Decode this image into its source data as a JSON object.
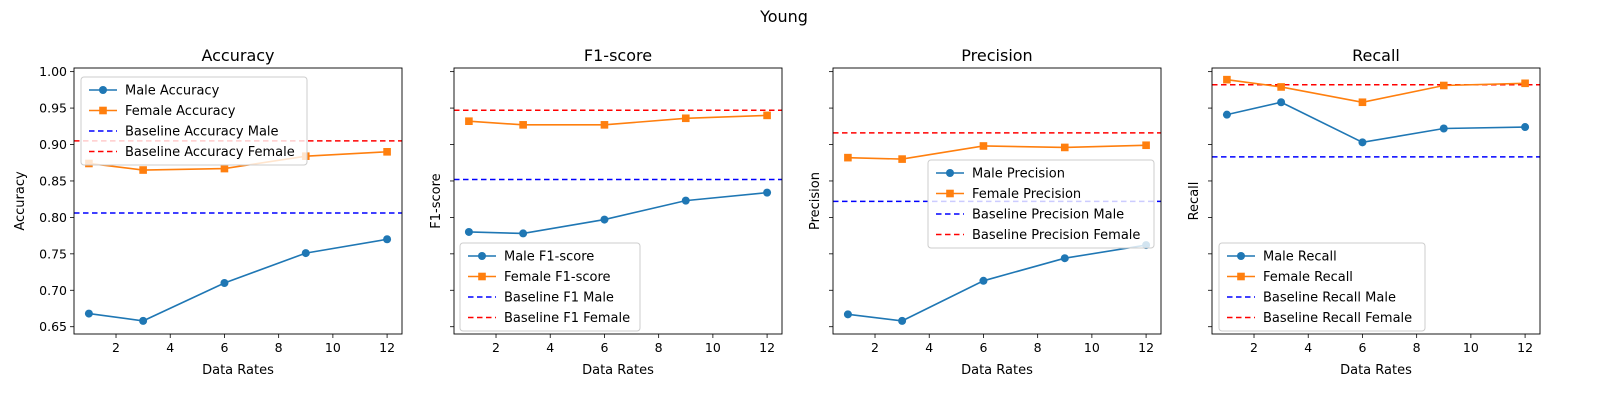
{
  "suptitle": "Young",
  "chart_data": [
    {
      "type": "line",
      "title": "Accuracy",
      "xlabel": "Data Rates",
      "ylabel": "Accuracy",
      "x": [
        1,
        3,
        6,
        9,
        12
      ],
      "xticks": [
        2,
        4,
        6,
        8,
        10,
        12
      ],
      "yticks": [
        "0.65",
        "0.70",
        "0.75",
        "0.80",
        "0.85",
        "0.90",
        "0.95",
        "1.00"
      ],
      "ylim": [
        0.64,
        1.005
      ],
      "grid": false,
      "legend_position": "upper-left",
      "series": [
        {
          "name": "Male Accuracy",
          "values": [
            0.668,
            0.658,
            0.71,
            0.751,
            0.77
          ],
          "color": "#1f77b4",
          "marker": "circle"
        },
        {
          "name": "Female Accuracy",
          "values": [
            0.874,
            0.865,
            0.867,
            0.884,
            0.89
          ],
          "color": "#ff7f0e",
          "marker": "square"
        }
      ],
      "baselines": [
        {
          "name": "Baseline Accuracy Male",
          "value": 0.806,
          "color": "#0000ff"
        },
        {
          "name": "Baseline Accuracy Female",
          "value": 0.905,
          "color": "#ff0000"
        }
      ]
    },
    {
      "type": "line",
      "title": "F1-score",
      "xlabel": "Data Rates",
      "ylabel": "F1-score",
      "x": [
        1,
        3,
        6,
        9,
        12
      ],
      "xticks": [
        2,
        4,
        6,
        8,
        10,
        12
      ],
      "yticks": [],
      "ylim": [
        0.64,
        1.005
      ],
      "grid": false,
      "legend_position": "lower-left",
      "series": [
        {
          "name": "Male F1-score",
          "values": [
            0.78,
            0.778,
            0.797,
            0.823,
            0.834
          ],
          "color": "#1f77b4",
          "marker": "circle"
        },
        {
          "name": "Female F1-score",
          "values": [
            0.932,
            0.927,
            0.927,
            0.936,
            0.94
          ],
          "color": "#ff7f0e",
          "marker": "square"
        }
      ],
      "baselines": [
        {
          "name": "Baseline F1 Male",
          "value": 0.852,
          "color": "#0000ff"
        },
        {
          "name": "Baseline F1 Female",
          "value": 0.947,
          "color": "#ff0000"
        }
      ]
    },
    {
      "type": "line",
      "title": "Precision",
      "xlabel": "Data Rates",
      "ylabel": "Precision",
      "x": [
        1,
        3,
        6,
        9,
        12
      ],
      "xticks": [
        2,
        4,
        6,
        8,
        10,
        12
      ],
      "yticks": [],
      "ylim": [
        0.64,
        1.005
      ],
      "grid": false,
      "legend_position": "center-right",
      "series": [
        {
          "name": "Male Precision",
          "values": [
            0.667,
            0.658,
            0.713,
            0.744,
            0.762
          ],
          "color": "#1f77b4",
          "marker": "circle"
        },
        {
          "name": "Female Precision",
          "values": [
            0.882,
            0.88,
            0.898,
            0.896,
            0.899
          ],
          "color": "#ff7f0e",
          "marker": "square"
        }
      ],
      "baselines": [
        {
          "name": "Baseline Precision Male",
          "value": 0.822,
          "color": "#0000ff"
        },
        {
          "name": "Baseline Precision Female",
          "value": 0.916,
          "color": "#ff0000"
        }
      ]
    },
    {
      "type": "line",
      "title": "Recall",
      "xlabel": "Data Rates",
      "ylabel": "Recall",
      "x": [
        1,
        3,
        6,
        9,
        12
      ],
      "xticks": [
        2,
        4,
        6,
        8,
        10,
        12
      ],
      "yticks": [],
      "ylim": [
        0.64,
        1.005
      ],
      "grid": false,
      "legend_position": "lower-left",
      "series": [
        {
          "name": "Male Recall",
          "values": [
            0.941,
            0.958,
            0.903,
            0.922,
            0.924
          ],
          "color": "#1f77b4",
          "marker": "circle"
        },
        {
          "name": "Female Recall",
          "values": [
            0.989,
            0.979,
            0.958,
            0.981,
            0.984
          ],
          "color": "#ff7f0e",
          "marker": "square"
        }
      ],
      "baselines": [
        {
          "name": "Baseline Recall Male",
          "value": 0.883,
          "color": "#0000ff"
        },
        {
          "name": "Baseline Recall Female",
          "value": 0.982,
          "color": "#ff0000"
        }
      ]
    }
  ]
}
